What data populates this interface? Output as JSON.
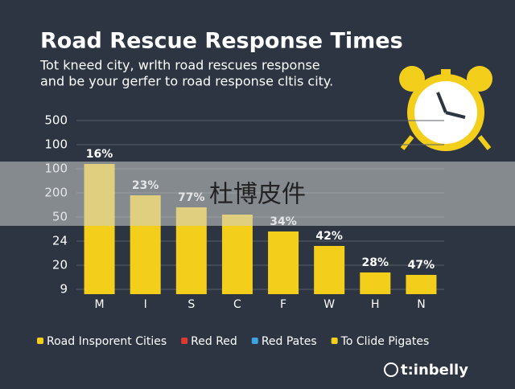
{
  "chart_data": {
    "type": "bar",
    "title": "Road Rescue Response Times",
    "subtitle_lines": [
      "Tot kneed city, wrlth road rescues response",
      "and be your gerfer to road response cltis city."
    ],
    "categories": [
      "M",
      "I",
      "S",
      "C",
      "F",
      "W",
      "H",
      "N"
    ],
    "values": [
      5.2,
      3.9,
      3.4,
      3.1,
      2.4,
      1.8,
      0.7,
      0.6
    ],
    "bar_labels": [
      "16%",
      "23%",
      "77%",
      null,
      "34%",
      "42%",
      "28%",
      "47%"
    ],
    "color": "#f3cf1c",
    "ylim": [
      -0.2,
      7
    ],
    "yticks": [
      {
        "value": 0,
        "label": "9"
      },
      {
        "value": 1,
        "label": "20"
      },
      {
        "value": 2,
        "label": "24"
      },
      {
        "value": 3,
        "label": "50"
      },
      {
        "value": 4,
        "label": "200"
      },
      {
        "value": 5,
        "label": "100"
      },
      {
        "value": 6,
        "label": "100"
      },
      {
        "value": 7,
        "label": "500"
      }
    ],
    "grid": true,
    "legend": [
      {
        "name": "Road Insporent Cities",
        "color": "#f3cf1c"
      },
      {
        "name": "Red Red",
        "color": "#e03a2f"
      },
      {
        "name": "Red Pates",
        "color": "#3aa3e0"
      },
      {
        "name": "To Clide Pigates",
        "color": "#f3cf1c"
      }
    ],
    "brand": "t:inbelly",
    "watermark": "杜博皮件"
  }
}
